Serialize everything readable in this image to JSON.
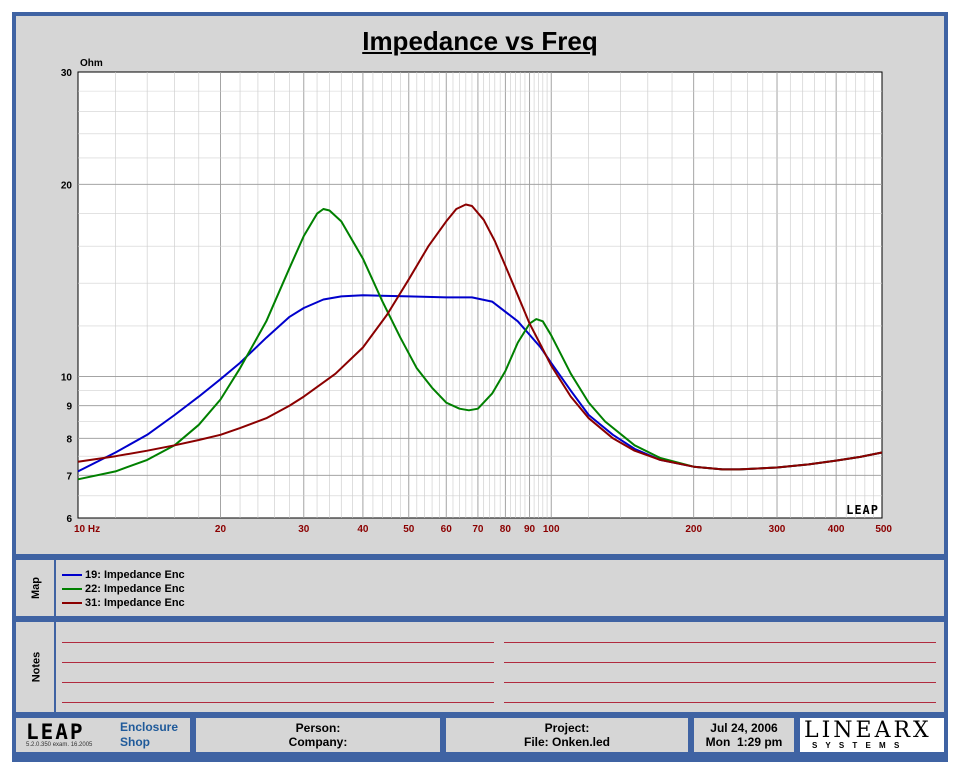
{
  "title": "Impedance vs Freq",
  "colors": {
    "frame": "#3f63a3",
    "panel": "#d6d6d6",
    "tick_x": "#8b0000",
    "series": [
      "#0000cc",
      "#008000",
      "#8b0000"
    ]
  },
  "chart_data": {
    "type": "line",
    "title": "Impedance vs Freq",
    "ylabel": "Ohm",
    "xlabel": "",
    "x_scale": "log",
    "y_scale": "log",
    "xlim": [
      10,
      500
    ],
    "ylim": [
      6,
      30
    ],
    "grid": true,
    "x_tick_labels": [
      "10  Hz",
      "20",
      "30",
      "40",
      "50",
      "60",
      "70",
      "80",
      "90",
      "100",
      "200",
      "300",
      "400",
      "500"
    ],
    "y_tick_labels": [
      "30",
      "20",
      "10",
      "9",
      "8",
      "7",
      "6"
    ],
    "series": [
      {
        "name": "19: Impedance Enc",
        "color": "#0000cc",
        "points": [
          [
            10,
            7.1
          ],
          [
            12,
            7.6
          ],
          [
            14,
            8.1
          ],
          [
            16,
            8.7
          ],
          [
            18,
            9.3
          ],
          [
            20,
            9.9
          ],
          [
            22,
            10.5
          ],
          [
            25,
            11.5
          ],
          [
            28,
            12.4
          ],
          [
            30,
            12.8
          ],
          [
            33,
            13.2
          ],
          [
            36,
            13.35
          ],
          [
            40,
            13.4
          ],
          [
            50,
            13.35
          ],
          [
            60,
            13.3
          ],
          [
            68,
            13.3
          ],
          [
            75,
            13.1
          ],
          [
            85,
            12.2
          ],
          [
            95,
            11.1
          ],
          [
            100,
            10.5
          ],
          [
            110,
            9.5
          ],
          [
            120,
            8.7
          ],
          [
            135,
            8.1
          ],
          [
            150,
            7.7
          ],
          [
            170,
            7.4
          ],
          [
            200,
            7.22
          ],
          [
            230,
            7.15
          ],
          [
            250,
            7.15
          ],
          [
            300,
            7.2
          ],
          [
            350,
            7.28
          ],
          [
            400,
            7.38
          ],
          [
            450,
            7.48
          ],
          [
            500,
            7.6
          ]
        ]
      },
      {
        "name": "22: Impedance Enc",
        "color": "#008000",
        "points": [
          [
            10,
            6.9
          ],
          [
            12,
            7.1
          ],
          [
            14,
            7.4
          ],
          [
            16,
            7.8
          ],
          [
            18,
            8.4
          ],
          [
            20,
            9.2
          ],
          [
            22,
            10.3
          ],
          [
            25,
            12.2
          ],
          [
            28,
            14.8
          ],
          [
            30,
            16.6
          ],
          [
            32,
            18.0
          ],
          [
            33,
            18.3
          ],
          [
            34,
            18.2
          ],
          [
            36,
            17.5
          ],
          [
            40,
            15.3
          ],
          [
            44,
            13.1
          ],
          [
            48,
            11.5
          ],
          [
            52,
            10.3
          ],
          [
            56,
            9.6
          ],
          [
            60,
            9.1
          ],
          [
            64,
            8.9
          ],
          [
            67,
            8.85
          ],
          [
            70,
            8.9
          ],
          [
            75,
            9.4
          ],
          [
            80,
            10.2
          ],
          [
            85,
            11.3
          ],
          [
            90,
            12.1
          ],
          [
            93,
            12.3
          ],
          [
            96,
            12.2
          ],
          [
            100,
            11.6
          ],
          [
            105,
            10.8
          ],
          [
            110,
            10.1
          ],
          [
            120,
            9.1
          ],
          [
            130,
            8.5
          ],
          [
            150,
            7.8
          ],
          [
            170,
            7.45
          ],
          [
            200,
            7.22
          ],
          [
            230,
            7.15
          ],
          [
            250,
            7.15
          ],
          [
            300,
            7.2
          ],
          [
            350,
            7.28
          ],
          [
            400,
            7.38
          ],
          [
            450,
            7.48
          ],
          [
            500,
            7.6
          ]
        ]
      },
      {
        "name": "31: Impedance Enc",
        "color": "#8b0000",
        "points": [
          [
            10,
            7.35
          ],
          [
            12,
            7.5
          ],
          [
            14,
            7.65
          ],
          [
            16,
            7.8
          ],
          [
            18,
            7.95
          ],
          [
            20,
            8.1
          ],
          [
            22,
            8.3
          ],
          [
            25,
            8.6
          ],
          [
            28,
            9.0
          ],
          [
            30,
            9.3
          ],
          [
            35,
            10.1
          ],
          [
            40,
            11.1
          ],
          [
            45,
            12.5
          ],
          [
            50,
            14.2
          ],
          [
            55,
            16.0
          ],
          [
            60,
            17.5
          ],
          [
            63,
            18.3
          ],
          [
            66,
            18.6
          ],
          [
            68,
            18.5
          ],
          [
            72,
            17.6
          ],
          [
            76,
            16.3
          ],
          [
            80,
            14.9
          ],
          [
            85,
            13.4
          ],
          [
            90,
            12.1
          ],
          [
            95,
            11.2
          ],
          [
            100,
            10.4
          ],
          [
            110,
            9.3
          ],
          [
            120,
            8.6
          ],
          [
            135,
            8.0
          ],
          [
            150,
            7.65
          ],
          [
            170,
            7.4
          ],
          [
            200,
            7.22
          ],
          [
            230,
            7.15
          ],
          [
            250,
            7.15
          ],
          [
            300,
            7.2
          ],
          [
            350,
            7.28
          ],
          [
            400,
            7.38
          ],
          [
            450,
            7.48
          ],
          [
            500,
            7.6
          ]
        ]
      }
    ]
  },
  "map_label": "Map",
  "notes_label": "Notes",
  "legend": [
    {
      "label": "19: Impedance Enc",
      "color": "#0000cc"
    },
    {
      "label": "22: Impedance Enc",
      "color": "#008000"
    },
    {
      "label": "31: Impedance Enc",
      "color": "#8b0000"
    }
  ],
  "footer": {
    "logo": "LEAP",
    "version": "5.2.0.350   exam. 16.2005",
    "product_line1": "Enclosure",
    "product_line2": "Shop",
    "person": "Person:",
    "company": "Company:",
    "project": "Project:",
    "file": "File: Onken.led",
    "date": "Jul 24, 2006",
    "time": "Mon  1:29 pm",
    "brand": "LINEARX",
    "brand_sub": "S Y S T E M S"
  },
  "watermark": "LEAP"
}
